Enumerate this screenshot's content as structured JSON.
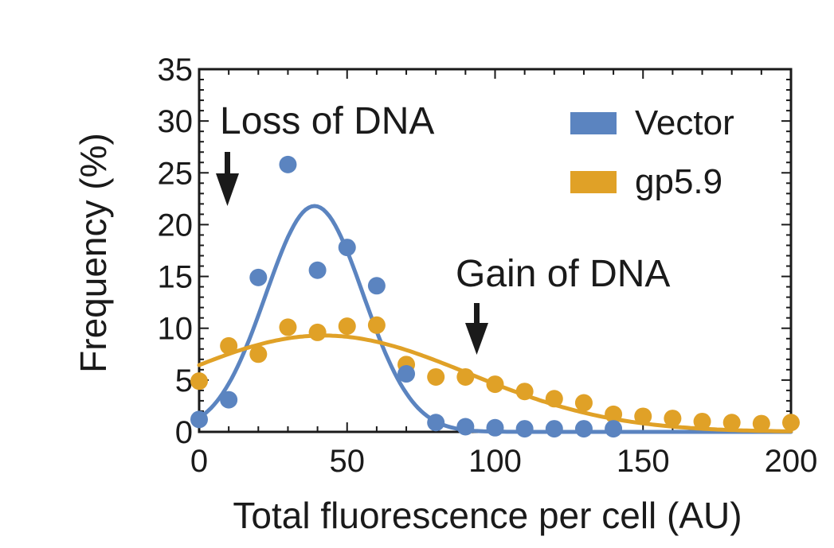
{
  "chart_data": {
    "type": "scatter",
    "title": "",
    "xlabel": "Total fluorescence per cell (AU)",
    "ylabel": "Frequency (%)",
    "xlim": [
      0,
      200
    ],
    "ylim": [
      0,
      35
    ],
    "xticks": [
      0,
      50,
      100,
      150,
      200
    ],
    "yticks": [
      0,
      5,
      10,
      15,
      20,
      25,
      30,
      35
    ],
    "legend_position": "top-right",
    "series": [
      {
        "name": "Vector",
        "color": "#5b84c0",
        "x": [
          0,
          10,
          20,
          30,
          40,
          50,
          60,
          70,
          80,
          90,
          100,
          110,
          120,
          130,
          140
        ],
        "y": [
          1.2,
          3.1,
          14.9,
          25.8,
          15.6,
          17.8,
          14.1,
          5.6,
          0.9,
          0.5,
          0.4,
          0.3,
          0.3,
          0.3,
          0.3
        ],
        "fit": {
          "model": "gaussian",
          "amplitude": 21.8,
          "mean": 39,
          "sigma": 16.5
        }
      },
      {
        "name": "gp5.9",
        "color": "#e0a127",
        "x": [
          0,
          10,
          20,
          30,
          40,
          50,
          60,
          70,
          80,
          90,
          100,
          110,
          120,
          130,
          140,
          150,
          160,
          170,
          180,
          190,
          200
        ],
        "y": [
          4.9,
          8.3,
          7.5,
          10.1,
          9.6,
          10.2,
          10.3,
          6.5,
          5.3,
          5.3,
          4.6,
          3.9,
          3.2,
          2.8,
          1.7,
          1.5,
          1.3,
          1.0,
          0.9,
          0.8,
          0.9
        ],
        "fit": {
          "model": "gaussian",
          "amplitude": 9.3,
          "mean": 42,
          "sigma": 49
        }
      }
    ],
    "annotations": [
      {
        "text": "Loss of DNA",
        "arrow_at_x": 10
      },
      {
        "text": "Gain of DNA",
        "arrow_at_x": 97
      }
    ]
  }
}
